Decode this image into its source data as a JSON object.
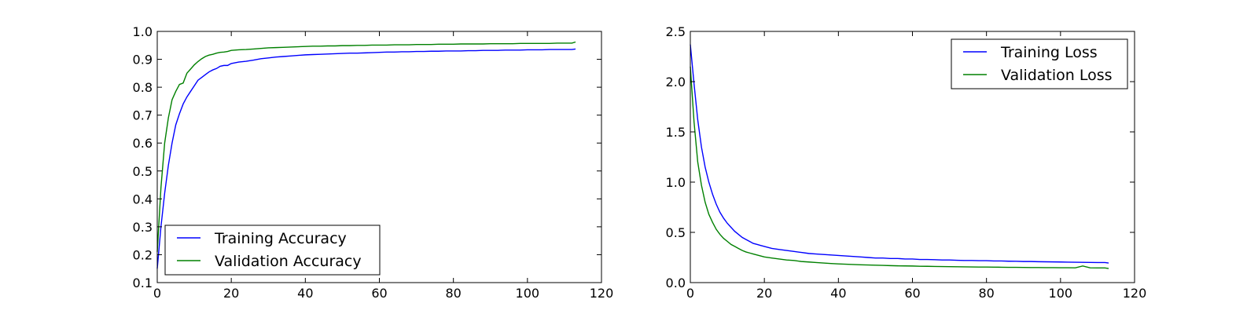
{
  "chart_data": [
    {
      "type": "line",
      "title": "",
      "xlabel": "",
      "ylabel": "",
      "xlim": [
        0,
        120
      ],
      "ylim": [
        0.1,
        1.0
      ],
      "x_ticks": [
        "0",
        "20",
        "40",
        "60",
        "80",
        "100",
        "120"
      ],
      "y_ticks": [
        "0.1",
        "0.2",
        "0.3",
        "0.4",
        "0.5",
        "0.6",
        "0.7",
        "0.8",
        "0.9",
        "1.0"
      ],
      "grid": false,
      "legend_position": "lower-left",
      "series": [
        {
          "name": "Training Accuracy",
          "color": "#0000ff",
          "x": [
            0,
            1,
            2,
            3,
            4,
            5,
            6,
            7,
            8,
            9,
            10,
            11,
            12,
            13,
            14,
            15,
            16,
            17,
            18,
            19,
            20,
            22,
            24,
            26,
            28,
            30,
            32,
            34,
            36,
            38,
            40,
            42,
            44,
            46,
            48,
            50,
            52,
            54,
            56,
            58,
            60,
            62,
            64,
            66,
            68,
            70,
            72,
            74,
            76,
            78,
            80,
            82,
            84,
            86,
            88,
            90,
            92,
            94,
            96,
            98,
            100,
            102,
            104,
            106,
            108,
            110,
            112,
            113
          ],
          "y": [
            0.15,
            0.3,
            0.42,
            0.52,
            0.6,
            0.665,
            0.705,
            0.74,
            0.765,
            0.785,
            0.805,
            0.825,
            0.835,
            0.845,
            0.855,
            0.862,
            0.867,
            0.875,
            0.878,
            0.878,
            0.885,
            0.89,
            0.893,
            0.897,
            0.902,
            0.905,
            0.908,
            0.91,
            0.912,
            0.914,
            0.916,
            0.917,
            0.918,
            0.919,
            0.92,
            0.921,
            0.922,
            0.922,
            0.923,
            0.924,
            0.925,
            0.926,
            0.926,
            0.927,
            0.927,
            0.928,
            0.928,
            0.929,
            0.929,
            0.93,
            0.93,
            0.93,
            0.931,
            0.931,
            0.932,
            0.932,
            0.932,
            0.933,
            0.933,
            0.933,
            0.934,
            0.934,
            0.934,
            0.935,
            0.935,
            0.935,
            0.935,
            0.937
          ]
        },
        {
          "name": "Validation Accuracy",
          "color": "#008000",
          "x": [
            0,
            1,
            2,
            3,
            4,
            5,
            6,
            7,
            8,
            9,
            10,
            11,
            12,
            13,
            14,
            15,
            16,
            17,
            18,
            19,
            20,
            22,
            24,
            26,
            28,
            30,
            32,
            34,
            36,
            38,
            40,
            42,
            44,
            46,
            48,
            50,
            52,
            54,
            56,
            58,
            60,
            62,
            64,
            66,
            68,
            70,
            72,
            74,
            76,
            78,
            80,
            82,
            84,
            86,
            88,
            90,
            92,
            94,
            96,
            98,
            100,
            102,
            104,
            106,
            108,
            110,
            112,
            113
          ],
          "y": [
            0.21,
            0.44,
            0.6,
            0.69,
            0.755,
            0.785,
            0.81,
            0.815,
            0.85,
            0.865,
            0.88,
            0.892,
            0.902,
            0.91,
            0.915,
            0.918,
            0.922,
            0.925,
            0.926,
            0.928,
            0.932,
            0.934,
            0.935,
            0.937,
            0.939,
            0.941,
            0.942,
            0.943,
            0.944,
            0.945,
            0.946,
            0.947,
            0.947,
            0.948,
            0.948,
            0.949,
            0.949,
            0.95,
            0.95,
            0.951,
            0.951,
            0.951,
            0.952,
            0.952,
            0.952,
            0.953,
            0.953,
            0.953,
            0.954,
            0.954,
            0.954,
            0.955,
            0.955,
            0.955,
            0.955,
            0.956,
            0.956,
            0.956,
            0.956,
            0.957,
            0.957,
            0.957,
            0.957,
            0.957,
            0.958,
            0.958,
            0.958,
            0.962
          ]
        }
      ]
    },
    {
      "type": "line",
      "title": "",
      "xlabel": "",
      "ylabel": "",
      "xlim": [
        0,
        120
      ],
      "ylim": [
        0.0,
        2.5
      ],
      "x_ticks": [
        "0",
        "20",
        "40",
        "60",
        "80",
        "100",
        "120"
      ],
      "y_ticks": [
        "0.0",
        "0.5",
        "1.0",
        "1.5",
        "2.0",
        "2.5"
      ],
      "grid": false,
      "legend_position": "upper-right",
      "series": [
        {
          "name": "Training Loss",
          "color": "#0000ff",
          "x": [
            0,
            1,
            2,
            3,
            4,
            5,
            6,
            7,
            8,
            9,
            10,
            11,
            12,
            13,
            14,
            15,
            16,
            17,
            18,
            19,
            20,
            22,
            24,
            26,
            28,
            30,
            32,
            34,
            36,
            38,
            40,
            42,
            44,
            46,
            48,
            50,
            52,
            54,
            56,
            58,
            60,
            62,
            64,
            66,
            68,
            70,
            72,
            74,
            76,
            78,
            80,
            82,
            84,
            86,
            88,
            90,
            92,
            94,
            96,
            98,
            100,
            102,
            104,
            106,
            108,
            110,
            112,
            113
          ],
          "y": [
            2.37,
            1.98,
            1.62,
            1.35,
            1.15,
            1.0,
            0.88,
            0.78,
            0.7,
            0.64,
            0.59,
            0.55,
            0.51,
            0.48,
            0.45,
            0.43,
            0.41,
            0.39,
            0.38,
            0.37,
            0.36,
            0.34,
            0.33,
            0.32,
            0.31,
            0.3,
            0.29,
            0.285,
            0.28,
            0.275,
            0.27,
            0.265,
            0.26,
            0.255,
            0.25,
            0.245,
            0.245,
            0.24,
            0.24,
            0.235,
            0.235,
            0.23,
            0.23,
            0.228,
            0.225,
            0.225,
            0.222,
            0.22,
            0.22,
            0.218,
            0.218,
            0.215,
            0.215,
            0.213,
            0.212,
            0.21,
            0.21,
            0.208,
            0.207,
            0.206,
            0.205,
            0.204,
            0.203,
            0.202,
            0.201,
            0.2,
            0.2,
            0.195
          ]
        },
        {
          "name": "Validation Loss",
          "color": "#008000",
          "x": [
            0,
            1,
            2,
            3,
            4,
            5,
            6,
            7,
            8,
            9,
            10,
            11,
            12,
            13,
            14,
            15,
            16,
            17,
            18,
            19,
            20,
            22,
            24,
            26,
            28,
            30,
            32,
            34,
            36,
            38,
            40,
            42,
            44,
            46,
            48,
            50,
            52,
            54,
            56,
            58,
            60,
            62,
            64,
            66,
            68,
            70,
            72,
            74,
            76,
            78,
            80,
            82,
            84,
            86,
            88,
            90,
            92,
            94,
            96,
            98,
            100,
            102,
            104,
            106,
            108,
            110,
            112,
            113
          ],
          "y": [
            2.15,
            1.6,
            1.2,
            0.97,
            0.8,
            0.68,
            0.6,
            0.53,
            0.48,
            0.44,
            0.41,
            0.38,
            0.36,
            0.34,
            0.32,
            0.305,
            0.295,
            0.285,
            0.275,
            0.265,
            0.255,
            0.245,
            0.235,
            0.225,
            0.22,
            0.21,
            0.205,
            0.2,
            0.195,
            0.19,
            0.186,
            0.183,
            0.18,
            0.177,
            0.175,
            0.173,
            0.171,
            0.169,
            0.167,
            0.166,
            0.165,
            0.163,
            0.162,
            0.161,
            0.16,
            0.159,
            0.158,
            0.157,
            0.156,
            0.155,
            0.155,
            0.154,
            0.153,
            0.152,
            0.152,
            0.151,
            0.15,
            0.15,
            0.149,
            0.149,
            0.148,
            0.148,
            0.147,
            0.165,
            0.147,
            0.146,
            0.146,
            0.14
          ]
        }
      ]
    }
  ]
}
